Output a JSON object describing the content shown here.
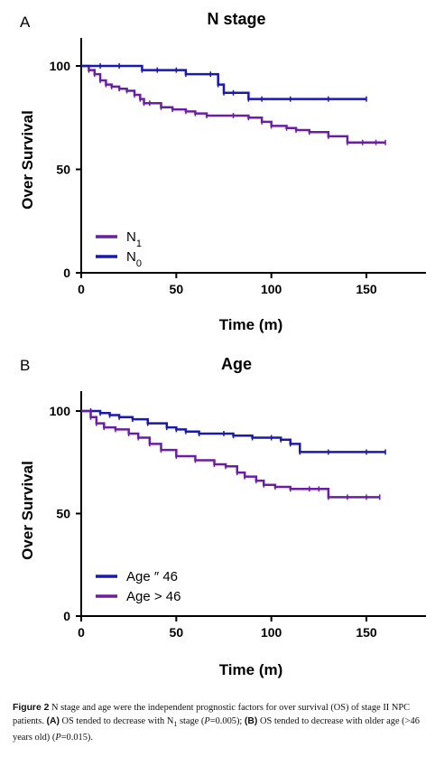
{
  "chart_data": [
    {
      "panel": "A",
      "type": "line",
      "title": "N stage",
      "xlabel": "Time (m)",
      "ylabel": "Over Survival",
      "xlim": [
        0,
        180
      ],
      "ylim": [
        0,
        110
      ],
      "xticks": [
        0,
        50,
        100,
        150
      ],
      "yticks": [
        0,
        50,
        100
      ],
      "legend_position": "bottom-left",
      "series": [
        {
          "name": "N1",
          "name_main": "N",
          "name_sub": "1",
          "color": "#6a1fa0",
          "x": [
            0,
            4,
            7,
            10,
            13,
            16,
            20,
            24,
            28,
            31,
            33,
            36,
            42,
            48,
            55,
            60,
            66,
            80,
            88,
            95,
            100,
            108,
            113,
            120,
            130,
            140,
            148,
            155,
            160
          ],
          "y": [
            100,
            98,
            96,
            93,
            91,
            90,
            89,
            88,
            86,
            84,
            82,
            82,
            80,
            79,
            78,
            77,
            76,
            76,
            75,
            73,
            71,
            70,
            69,
            68,
            66,
            63,
            63,
            63,
            63
          ]
        },
        {
          "name": "N0",
          "name_main": "N",
          "name_sub": "0",
          "color": "#1a1aa8",
          "x": [
            0,
            10,
            20,
            32,
            40,
            50,
            55,
            68,
            72,
            75,
            80,
            88,
            95,
            110,
            130,
            150
          ],
          "y": [
            100,
            100,
            100,
            98,
            98,
            98,
            96,
            96,
            91,
            87,
            87,
            84,
            84,
            84,
            84,
            84
          ]
        }
      ]
    },
    {
      "panel": "B",
      "type": "line",
      "title": "Age",
      "xlabel": "Time (m)",
      "ylabel": "Over Survival",
      "xlim": [
        0,
        180
      ],
      "ylim": [
        0,
        110
      ],
      "xticks": [
        0,
        50,
        100,
        150
      ],
      "yticks": [
        0,
        50,
        100
      ],
      "legend_position": "bottom-left",
      "series": [
        {
          "name": "Age ″ 46",
          "color": "#1a1aa8",
          "x": [
            0,
            5,
            10,
            15,
            20,
            27,
            35,
            45,
            50,
            55,
            62,
            75,
            80,
            90,
            100,
            105,
            110,
            115,
            130,
            150,
            160
          ],
          "y": [
            100,
            100,
            99,
            98,
            97,
            96,
            94,
            92,
            91,
            90,
            89,
            89,
            88,
            87,
            87,
            86,
            84,
            80,
            80,
            80,
            80
          ]
        },
        {
          "name": "Age > 46",
          "color": "#6a1fa0",
          "x": [
            0,
            5,
            8,
            12,
            18,
            25,
            30,
            36,
            42,
            50,
            60,
            70,
            76,
            82,
            86,
            92,
            96,
            102,
            110,
            120,
            125,
            130,
            140,
            150,
            157
          ],
          "y": [
            100,
            97,
            94,
            92,
            91,
            89,
            87,
            84,
            81,
            78,
            76,
            74,
            73,
            70,
            68,
            66,
            64,
            63,
            62,
            62,
            62,
            58,
            58,
            58,
            58
          ]
        }
      ]
    }
  ],
  "panel_a": {
    "letter": "A"
  },
  "panel_b": {
    "letter": "B"
  },
  "caption": {
    "figure_label": "Figure 2",
    "text_1": " N stage and age were the independent prognostic factors for over survival (OS) of stage II NPC patients. ",
    "a_label": "(A)",
    "text_2": " OS tended to decrease with N",
    "text_2_sub": "1",
    "text_3": " stage (",
    "p_italic_1": "P",
    "text_4": "=0.005); ",
    "b_label": "(B)",
    "text_5": " OS tended to decrease with older age (>46 years old) (",
    "p_italic_2": "P",
    "text_6": "=0.015)."
  }
}
